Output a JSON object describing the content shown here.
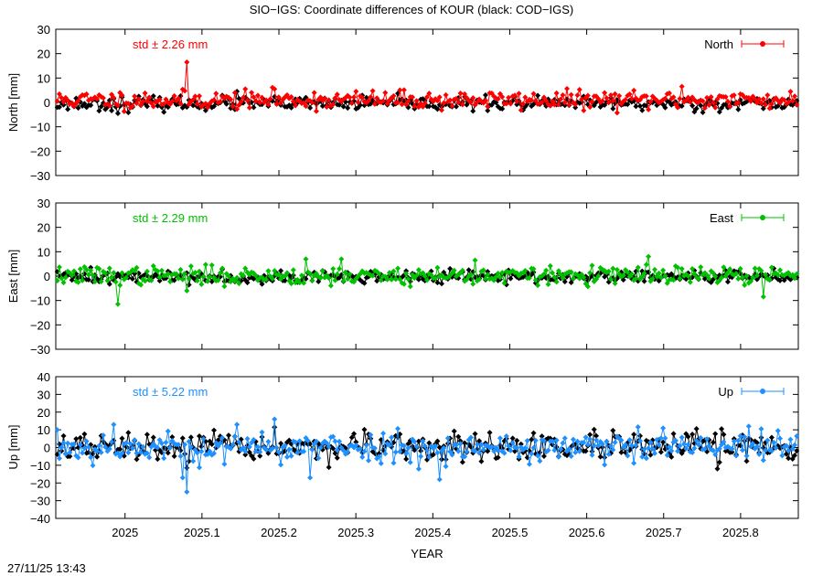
{
  "title": "SIO−IGS: Coordinate differences of KOUR (black: COD−IGS)",
  "timestamp": "27/11/25 13:43",
  "colors": {
    "reference": "#000000",
    "north": "#ff0000",
    "east": "#00c000",
    "up": "#1e90ff"
  },
  "chart_data": [
    {
      "type": "line",
      "panel": "north",
      "ylabel": "North [mm]",
      "legend": "North",
      "legend_position": "top-right",
      "std_label": "std ± 2.26 mm",
      "std_color": "#ff0000",
      "ylim": [
        -30,
        30
      ],
      "yticks": [
        30,
        20,
        10,
        0,
        -10,
        -20,
        -30
      ],
      "ytick_labels": [
        "30",
        "20",
        "10",
        "0",
        "−10",
        "−20",
        "−30"
      ],
      "xlim": [
        2024.91,
        2025.875
      ],
      "series_note": "daily values, approx. one point per day",
      "series": [
        {
          "name": "North",
          "color": "#ff0000",
          "seed": 11,
          "amplitude": 2.2,
          "offset": 1.0,
          "spikes": [
            [
              2025.081,
              16.5
            ],
            [
              2025.195,
              5.5
            ],
            [
              2025.725,
              6.5
            ]
          ]
        },
        {
          "name": "COD−IGS",
          "color": "#000000",
          "seed": 23,
          "amplitude": 1.6,
          "offset": -0.5,
          "spikes": [
            [
              2024.99,
              -4.5
            ],
            [
              2025.145,
              4.5
            ]
          ]
        }
      ]
    },
    {
      "type": "line",
      "panel": "east",
      "ylabel": "East [mm]",
      "legend": "East",
      "legend_position": "top-right",
      "std_label": "std ± 2.29 mm",
      "std_color": "#00c000",
      "ylim": [
        -30,
        30
      ],
      "yticks": [
        30,
        20,
        10,
        0,
        -10,
        -20,
        -30
      ],
      "ytick_labels": [
        "30",
        "20",
        "10",
        "0",
        "−10",
        "−20",
        "−30"
      ],
      "xlim": [
        2024.91,
        2025.875
      ],
      "series": [
        {
          "name": "East",
          "color": "#00c000",
          "seed": 37,
          "amplitude": 2.2,
          "offset": 0.2,
          "spikes": [
            [
              2024.99,
              -11.5
            ],
            [
              2025.081,
              -6.0
            ],
            [
              2025.235,
              7.0
            ],
            [
              2025.28,
              7.0
            ],
            [
              2025.455,
              6.5
            ],
            [
              2025.68,
              8.0
            ],
            [
              2025.83,
              -8.5
            ]
          ]
        },
        {
          "name": "COD−IGS",
          "color": "#000000",
          "seed": 41,
          "amplitude": 1.5,
          "offset": -0.3,
          "spikes": [
            [
              2024.955,
              3.5
            ]
          ]
        }
      ]
    },
    {
      "type": "line",
      "panel": "up",
      "ylabel": "Up [mm]",
      "legend": "Up",
      "legend_position": "top-right",
      "std_label": "std ± 5.22 mm",
      "std_color": "#1e90ff",
      "ylim": [
        -40,
        40
      ],
      "yticks": [
        40,
        30,
        20,
        10,
        0,
        -10,
        -20,
        -30,
        -40
      ],
      "ytick_labels": [
        "40",
        "30",
        "20",
        "10",
        "0",
        "−10",
        "−20",
        "−30",
        "−40"
      ],
      "xlim": [
        2024.91,
        2025.875
      ],
      "xticks": [
        2025,
        2025.1,
        2025.2,
        2025.3,
        2025.4,
        2025.5,
        2025.6,
        2025.7,
        2025.8
      ],
      "xtick_labels": [
        "2025",
        "2025.1",
        "2025.2",
        "2025.3",
        "2025.4",
        "2025.5",
        "2025.6",
        "2025.7",
        "2025.8"
      ],
      "xlabel": "YEAR",
      "series": [
        {
          "name": "Up",
          "color": "#1e90ff",
          "seed": 53,
          "amplitude": 5.0,
          "offset": 0.0,
          "spikes": [
            [
              2024.912,
              10.0
            ],
            [
              2024.985,
              13.0
            ],
            [
              2025.075,
              -17.0
            ],
            [
              2025.081,
              -25.0
            ],
            [
              2025.145,
              13.0
            ],
            [
              2025.195,
              16.0
            ],
            [
              2025.24,
              -17.0
            ],
            [
              2025.41,
              -18.0
            ],
            [
              2025.7,
              11.0
            ],
            [
              2025.81,
              12.0
            ]
          ]
        },
        {
          "name": "COD−IGS",
          "color": "#000000",
          "seed": 67,
          "amplitude": 4.5,
          "offset": 0.0,
          "spikes": [
            [
              2025.081,
              -11.5
            ],
            [
              2025.195,
              11.5
            ],
            [
              2025.775,
              10.5
            ],
            [
              2025.77,
              -12.0
            ]
          ]
        }
      ]
    }
  ]
}
